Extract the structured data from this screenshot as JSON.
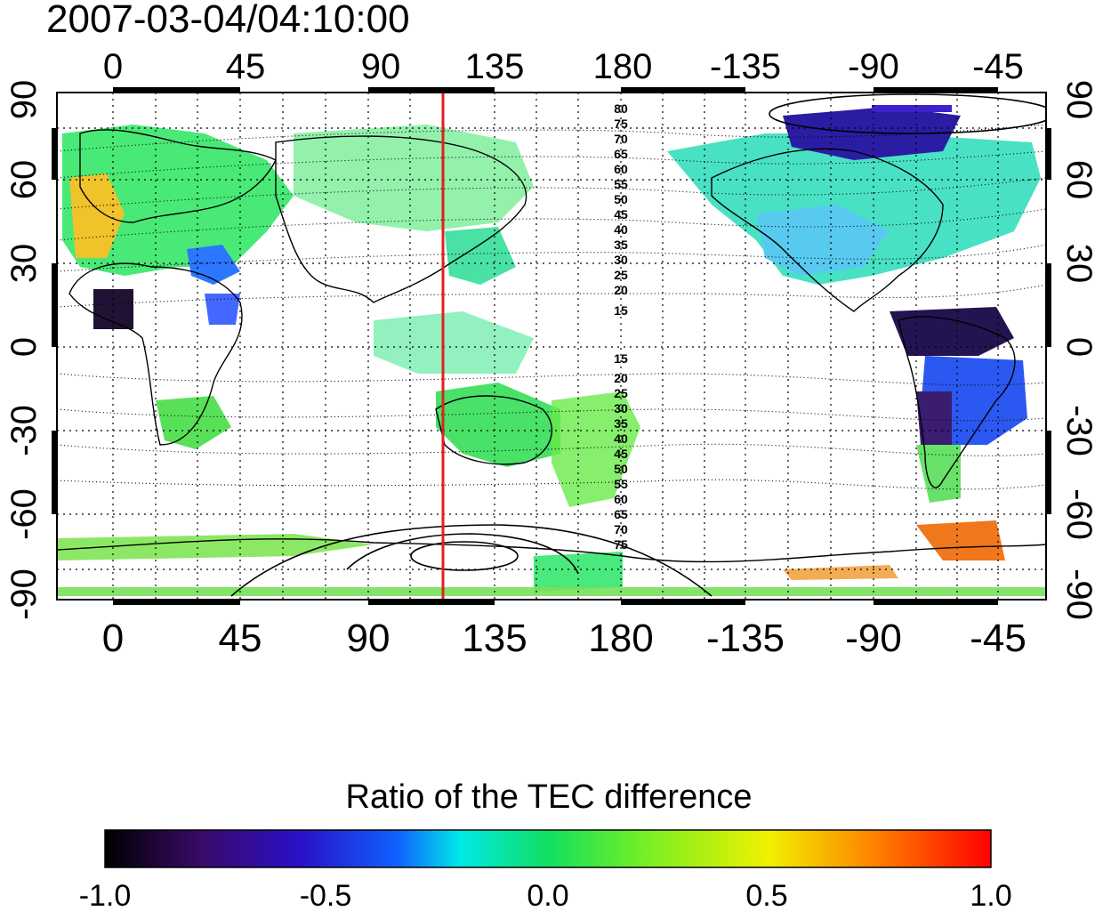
{
  "title": "2007-03-04/04:10:00",
  "axes": {
    "lon_ticks": [
      "0",
      "45",
      "90",
      "135",
      "180",
      "-135",
      "-90",
      "-45"
    ],
    "lat_ticks": [
      "90",
      "60",
      "30",
      "0",
      "-30",
      "-60",
      "-90"
    ],
    "lon_range": [
      -20,
      330
    ],
    "lat_range": [
      -90,
      90
    ],
    "grid": true
  },
  "marker_line": {
    "longitude": 120,
    "color": "#e02020"
  },
  "contour_labels_north": [
    "80",
    "75",
    "70",
    "65",
    "60",
    "55",
    "50",
    "45",
    "40",
    "35",
    "30",
    "25",
    "20",
    "15"
  ],
  "contour_labels_south": [
    "15",
    "20",
    "25",
    "30",
    "35",
    "40",
    "45",
    "50",
    "55",
    "60",
    "65",
    "70",
    "75"
  ],
  "colorbar": {
    "title": "Ratio of the TEC difference",
    "tick_labels": [
      "-1.0",
      "-0.5",
      "0.0",
      "0.5",
      "1.0"
    ],
    "range": [
      -1.0,
      1.0
    ],
    "colors": [
      "#000000",
      "#3a0a6a",
      "#2a10c8",
      "#1060ff",
      "#00e8e8",
      "#10e060",
      "#80f020",
      "#f0f000",
      "#ff8000",
      "#ff0000"
    ]
  }
}
